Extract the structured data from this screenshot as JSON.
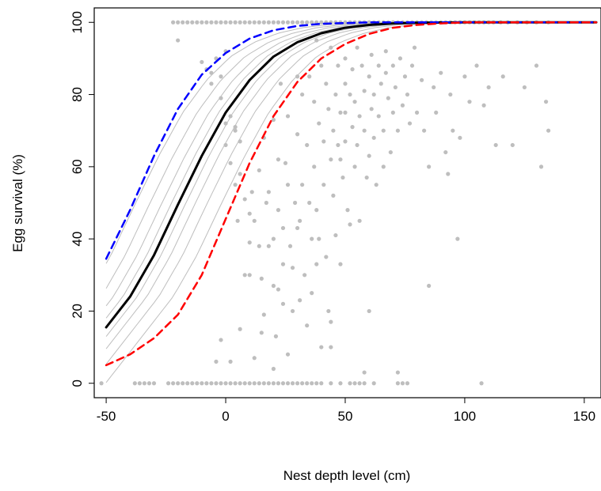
{
  "chart_data": {
    "type": "scatter",
    "title": "",
    "xlabel": "Nest depth level (cm)",
    "ylabel": "Egg survival (%)",
    "xlim": [
      -55,
      157
    ],
    "ylim": [
      -4,
      104
    ],
    "xticks": [
      "-50",
      "0",
      "50",
      "100",
      "150"
    ],
    "yticks": [
      "0",
      "20",
      "40",
      "60",
      "80",
      "100"
    ],
    "grid": false,
    "legend": "none",
    "points_color": "#bebebe",
    "series": [
      {
        "style": "solid",
        "color": "#000000",
        "x": [
          -50,
          -40,
          -30,
          -20,
          -10,
          0,
          10,
          20,
          30,
          40,
          50,
          60,
          70,
          80,
          100,
          120,
          155
        ],
        "y": [
          15.5,
          24,
          35.5,
          49.5,
          63,
          75,
          84,
          90.5,
          94.5,
          97,
          98.5,
          99.3,
          99.7,
          99.9,
          100,
          100,
          100
        ]
      },
      {
        "style": "dashed",
        "color": "#0000ff",
        "x": [
          -50,
          -40,
          -30,
          -20,
          -10,
          0,
          10,
          20,
          30,
          40,
          50,
          60,
          80,
          155
        ],
        "y": [
          34.5,
          48,
          63,
          76,
          85.5,
          91.5,
          95.5,
          97.8,
          99,
          99.6,
          99.8,
          100,
          100,
          100
        ]
      },
      {
        "style": "dashed",
        "color": "#ff0000",
        "x": [
          -50,
          -40,
          -30,
          -20,
          -10,
          0,
          10,
          20,
          30,
          40,
          50,
          60,
          70,
          80,
          90,
          100,
          155
        ],
        "y": [
          5,
          8,
          12.5,
          19,
          30,
          45.5,
          61,
          74,
          83.5,
          90,
          94,
          96.8,
          98.5,
          99.3,
          99.7,
          100,
          100
        ]
      }
    ],
    "envelope_color": "#bebebe",
    "envelope_offsets": [
      -18,
      -12,
      -7,
      -3,
      3,
      7,
      12,
      18
    ],
    "scatter": {
      "top_row": {
        "y": 100,
        "x": [
          -22,
          -20,
          -18,
          -16,
          -14,
          -12,
          -10,
          -8,
          -6,
          -4,
          -2,
          0,
          2,
          4,
          6,
          8,
          10,
          12,
          14,
          16,
          18,
          20,
          22,
          24,
          26,
          28,
          30,
          32,
          34,
          36,
          38,
          40,
          42,
          44,
          46,
          48,
          50,
          52,
          54,
          56,
          58,
          60,
          62,
          64,
          66,
          68,
          70,
          72,
          74,
          76,
          78,
          80,
          82,
          84,
          86,
          88,
          90,
          92,
          94,
          96,
          98,
          100,
          102,
          104,
          106,
          108,
          110,
          112,
          115,
          118,
          122,
          126,
          130,
          135
        ]
      },
      "bottom_row": {
        "y": 0,
        "x": [
          -52,
          -38,
          -36,
          -34,
          -32,
          -30,
          -24,
          -22,
          -20,
          -18,
          -16,
          -14,
          -12,
          -10,
          -8,
          -6,
          -4,
          -2,
          0,
          2,
          4,
          6,
          8,
          10,
          12,
          14,
          16,
          18,
          20,
          22,
          24,
          26,
          28,
          30,
          32,
          34,
          36,
          38,
          40,
          44,
          48,
          52,
          54,
          56,
          58,
          62,
          72,
          74,
          76,
          107
        ]
      },
      "points": [
        [
          -20,
          95
        ],
        [
          -10,
          89
        ],
        [
          -8,
          87
        ],
        [
          -6,
          86
        ],
        [
          -6,
          83
        ],
        [
          -4,
          90
        ],
        [
          -2,
          85
        ],
        [
          -2,
          79
        ],
        [
          0,
          92
        ],
        [
          0,
          72
        ],
        [
          0,
          66
        ],
        [
          2,
          74
        ],
        [
          2,
          61
        ],
        [
          4,
          71
        ],
        [
          4,
          70
        ],
        [
          4,
          55
        ],
        [
          5,
          45
        ],
        [
          6,
          67
        ],
        [
          6,
          58
        ],
        [
          8,
          51
        ],
        [
          8,
          30
        ],
        [
          10,
          47
        ],
        [
          10,
          39
        ],
        [
          10,
          30
        ],
        [
          11,
          53
        ],
        [
          12,
          45
        ],
        [
          14,
          59
        ],
        [
          14,
          38
        ],
        [
          15,
          29
        ],
        [
          15,
          14
        ],
        [
          16,
          68
        ],
        [
          16,
          19
        ],
        [
          17,
          50
        ],
        [
          18,
          53
        ],
        [
          18,
          38
        ],
        [
          20,
          73
        ],
        [
          20,
          40
        ],
        [
          20,
          27
        ],
        [
          21,
          13
        ],
        [
          22,
          62
        ],
        [
          22,
          48
        ],
        [
          22,
          26
        ],
        [
          23,
          83
        ],
        [
          24,
          43
        ],
        [
          24,
          33
        ],
        [
          24,
          22
        ],
        [
          25,
          61
        ],
        [
          26,
          74
        ],
        [
          26,
          55
        ],
        [
          27,
          38
        ],
        [
          28,
          32
        ],
        [
          28,
          20
        ],
        [
          29,
          50
        ],
        [
          30,
          85
        ],
        [
          30,
          69
        ],
        [
          30,
          43
        ],
        [
          31,
          45
        ],
        [
          31,
          23
        ],
        [
          32,
          80
        ],
        [
          32,
          55
        ],
        [
          33,
          30
        ],
        [
          34,
          16
        ],
        [
          34,
          66
        ],
        [
          35,
          85
        ],
        [
          35,
          50
        ],
        [
          36,
          40
        ],
        [
          36,
          25
        ],
        [
          37,
          78
        ],
        [
          37,
          60
        ],
        [
          38,
          95
        ],
        [
          38,
          48
        ],
        [
          38,
          33
        ],
        [
          39,
          72
        ],
        [
          39,
          40
        ],
        [
          40,
          88
        ],
        [
          40,
          10
        ],
        [
          41,
          67
        ],
        [
          41,
          55
        ],
        [
          42,
          83
        ],
        [
          42,
          35
        ],
        [
          43,
          76
        ],
        [
          43,
          20
        ],
        [
          44,
          93
        ],
        [
          44,
          62
        ],
        [
          44,
          17
        ],
        [
          45,
          70
        ],
        [
          45,
          52
        ],
        [
          46,
          80
        ],
        [
          46,
          41
        ],
        [
          47,
          88
        ],
        [
          47,
          66
        ],
        [
          48,
          75
        ],
        [
          48,
          62
        ],
        [
          48,
          33
        ],
        [
          49,
          57
        ],
        [
          50,
          90
        ],
        [
          50,
          83
        ],
        [
          50,
          75
        ],
        [
          50,
          67
        ],
        [
          51,
          48
        ],
        [
          52,
          80
        ],
        [
          52,
          44
        ],
        [
          53,
          87
        ],
        [
          53,
          71
        ],
        [
          54,
          78
        ],
        [
          54,
          60
        ],
        [
          55,
          66
        ],
        [
          55,
          93
        ],
        [
          56,
          74
        ],
        [
          56,
          45
        ],
        [
          57,
          88
        ],
        [
          58,
          81
        ],
        [
          58,
          70
        ],
        [
          59,
          57
        ],
        [
          60,
          85
        ],
        [
          60,
          63
        ],
        [
          61,
          91
        ],
        [
          61,
          76
        ],
        [
          62,
          80
        ],
        [
          62,
          68
        ],
        [
          63,
          55
        ],
        [
          64,
          88
        ],
        [
          64,
          74
        ],
        [
          65,
          83
        ],
        [
          66,
          70
        ],
        [
          66,
          60
        ],
        [
          67,
          86
        ],
        [
          67,
          92
        ],
        [
          68,
          79
        ],
        [
          69,
          64
        ],
        [
          70,
          88
        ],
        [
          70,
          75
        ],
        [
          71,
          82
        ],
        [
          72,
          70
        ],
        [
          72,
          3
        ],
        [
          73,
          90
        ],
        [
          74,
          77
        ],
        [
          75,
          85
        ],
        [
          76,
          80
        ],
        [
          77,
          72
        ],
        [
          78,
          88
        ],
        [
          79,
          93
        ],
        [
          80,
          75
        ],
        [
          82,
          84
        ],
        [
          83,
          70
        ],
        [
          85,
          60
        ],
        [
          85,
          27
        ],
        [
          87,
          82
        ],
        [
          88,
          75
        ],
        [
          90,
          86
        ],
        [
          92,
          64
        ],
        [
          93,
          58
        ],
        [
          94,
          80
        ],
        [
          95,
          70
        ],
        [
          97,
          40
        ],
        [
          98,
          68
        ],
        [
          100,
          85
        ],
        [
          102,
          78
        ],
        [
          105,
          88
        ],
        [
          108,
          77
        ],
        [
          110,
          82
        ],
        [
          113,
          66
        ],
        [
          116,
          85
        ],
        [
          120,
          66
        ],
        [
          125,
          82
        ],
        [
          130,
          88
        ],
        [
          132,
          60
        ],
        [
          134,
          78
        ],
        [
          135,
          70
        ],
        [
          -4,
          6
        ],
        [
          -2,
          12
        ],
        [
          2,
          6
        ],
        [
          6,
          15
        ],
        [
          12,
          7
        ],
        [
          26,
          8
        ],
        [
          20,
          4
        ],
        [
          58,
          3
        ],
        [
          44,
          10
        ],
        [
          60,
          20
        ]
      ]
    }
  }
}
